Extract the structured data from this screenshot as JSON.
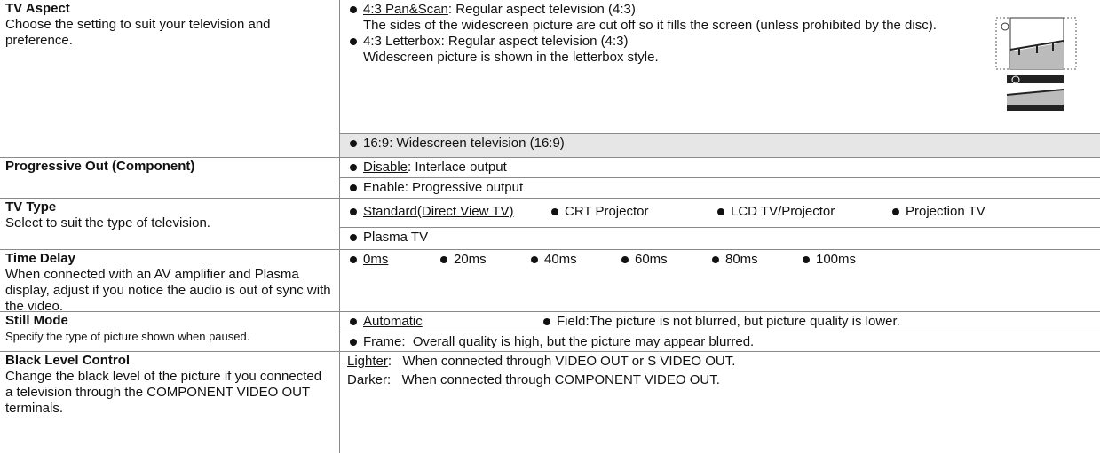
{
  "rows": [
    {
      "title": "TV Aspect",
      "description": "Choose the setting to suit your television and preference.",
      "bullets": true,
      "groups": [
        {
          "options": [
            {
              "name": "4:3 Pan&Scan",
              "default": true,
              "text": ": Regular aspect television (4:3)",
              "detail": "The sides of the widescreen picture are cut off so it fills the screen (unless prohibited by the disc)."
            },
            {
              "name": "4:3 Letterbox",
              "text": ": Regular aspect television (4:3)",
              "detail": "Widescreen picture is shown in the letterbox style."
            }
          ]
        },
        {
          "shade": true,
          "options": [
            {
              "name": "16:9",
              "text": ": Widescreen television (16:9)"
            }
          ]
        }
      ]
    },
    {
      "title": "Progressive Out (Component)",
      "bullets": true,
      "groups": [
        {
          "options": [
            {
              "name": "Disable",
              "default": true,
              "text": ": Interlace output"
            }
          ]
        },
        {
          "options": [
            {
              "name": "Enable",
              "text": ": Progressive output"
            }
          ]
        }
      ]
    },
    {
      "title": "TV Type",
      "description": "Select to suit the type of television.",
      "bullets": true,
      "groups": [
        {
          "options": [
            {
              "name": "Standard(Direct View TV)",
              "default": true
            },
            {
              "name": "CRT Projector"
            },
            {
              "name": "LCD TV/Projector"
            },
            {
              "name": "Projection TV"
            }
          ]
        },
        {
          "options": [
            {
              "name": "Plasma TV"
            }
          ]
        }
      ]
    },
    {
      "title": "Time Delay",
      "description": "When connected with an AV amplifier and Plasma display, adjust if you notice the audio is out of sync with the video.",
      "bullets": true,
      "groups": [
        {
          "options": [
            {
              "name": "0ms",
              "default": true
            },
            {
              "name": "20ms"
            },
            {
              "name": "40ms"
            },
            {
              "name": "60ms"
            },
            {
              "name": "80ms"
            },
            {
              "name": "100ms"
            }
          ]
        }
      ]
    },
    {
      "title": "Still Mode",
      "description": "Specify the type of picture shown when paused.",
      "bullets": true,
      "groups": [
        {
          "options": [
            {
              "name": "Automatic",
              "default": true
            },
            {
              "name": "Field",
              "text": ":The picture is not blurred, but picture quality is lower."
            }
          ]
        },
        {
          "options": [
            {
              "name": "Frame",
              "text": ":  Overall quality is high, but the picture may appear blurred."
            }
          ]
        }
      ]
    },
    {
      "title": "Black Level Control",
      "description": "Change the black level of the picture if you connected a television through the COMPONENT VIDEO OUT terminals.",
      "bullets": false,
      "groups": [
        {
          "options": [
            {
              "name": "Lighter",
              "default": true,
              "text": ":   When connected through VIDEO OUT or S VIDEO OUT."
            },
            {
              "name": "Darker",
              "text": ":   When connected through COMPONENT VIDEO OUT."
            }
          ]
        }
      ]
    }
  ]
}
